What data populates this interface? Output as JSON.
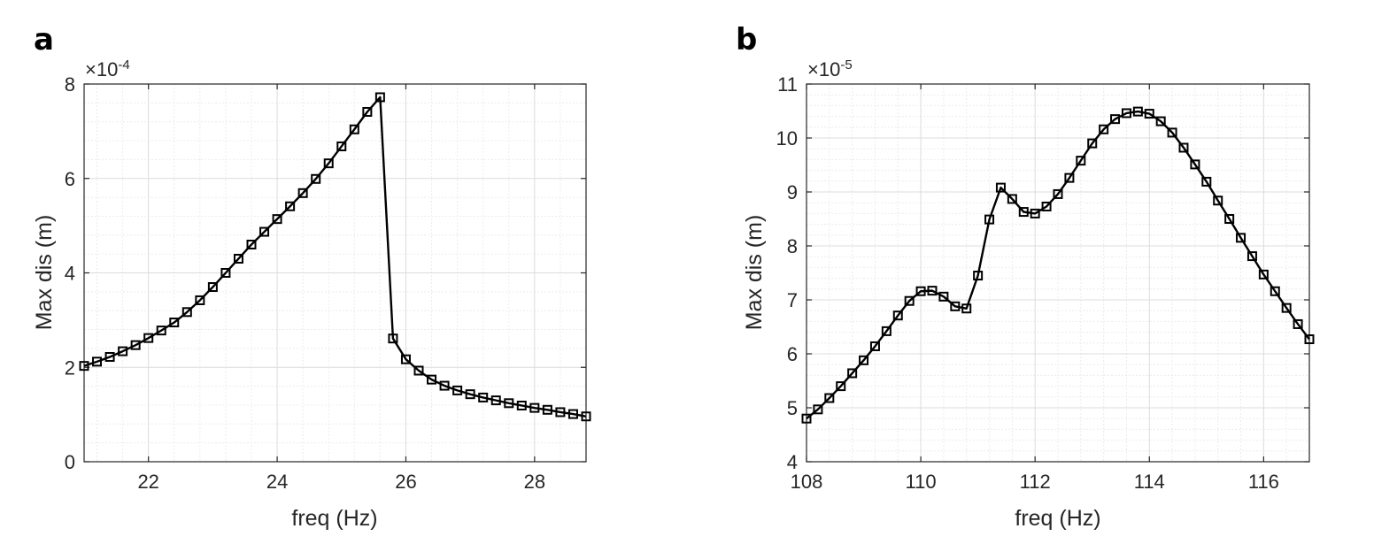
{
  "colors": {
    "line": "#000000",
    "grid_major": "#dcdcdc",
    "grid_minor": "#ececec",
    "axis": "#262626"
  },
  "chart_data": [
    {
      "type": "line",
      "panel_label": "a",
      "title": "",
      "xlabel": "freq (Hz)",
      "ylabel": "Max dis (m)",
      "xlim": [
        21,
        28.8
      ],
      "ylim": [
        0,
        8
      ],
      "xticks": [
        22,
        24,
        26,
        28
      ],
      "yticks": [
        0,
        2,
        4,
        6,
        8
      ],
      "x_minor_step": 0.4,
      "y_minor_step": 0.4,
      "exponent_label": "×10",
      "exponent_power": "-4",
      "marker": "square",
      "grid": true,
      "series": [
        {
          "name": "Max dis",
          "x": [
            21.0,
            21.2,
            21.4,
            21.6,
            21.8,
            22.0,
            22.2,
            22.4,
            22.6,
            22.8,
            23.0,
            23.2,
            23.4,
            23.6,
            23.8,
            24.0,
            24.2,
            24.4,
            24.6,
            24.8,
            25.0,
            25.2,
            25.4,
            25.6,
            25.8,
            26.0,
            26.2,
            26.4,
            26.6,
            26.8,
            27.0,
            27.2,
            27.4,
            27.6,
            27.8,
            28.0,
            28.2,
            28.4,
            28.6,
            28.8
          ],
          "y": [
            2.03,
            2.12,
            2.22,
            2.34,
            2.47,
            2.62,
            2.78,
            2.95,
            3.17,
            3.42,
            3.7,
            4.0,
            4.3,
            4.6,
            4.87,
            5.14,
            5.41,
            5.69,
            5.99,
            6.32,
            6.68,
            7.04,
            7.41,
            7.72,
            2.61,
            2.17,
            1.93,
            1.74,
            1.61,
            1.51,
            1.43,
            1.36,
            1.3,
            1.24,
            1.19,
            1.14,
            1.1,
            1.05,
            1.01,
            0.96
          ]
        }
      ]
    },
    {
      "type": "line",
      "panel_label": "b",
      "title": "",
      "xlabel": "freq (Hz)",
      "ylabel": "Max dis (m)",
      "xlim": [
        108,
        116.8
      ],
      "ylim": [
        4,
        11
      ],
      "xticks": [
        108,
        110,
        112,
        114,
        116
      ],
      "yticks": [
        4,
        5,
        6,
        7,
        8,
        9,
        10,
        11
      ],
      "x_minor_step": 0.4,
      "y_minor_step": 0.2,
      "exponent_label": "×10",
      "exponent_power": "-5",
      "marker": "square",
      "grid": true,
      "series": [
        {
          "name": "Max dis",
          "x": [
            108.0,
            108.2,
            108.4,
            108.6,
            108.8,
            109.0,
            109.2,
            109.4,
            109.6,
            109.8,
            110.0,
            110.2,
            110.4,
            110.6,
            110.8,
            111.0,
            111.2,
            111.4,
            111.6,
            111.8,
            112.0,
            112.2,
            112.4,
            112.6,
            112.8,
            113.0,
            113.2,
            113.4,
            113.6,
            113.8,
            114.0,
            114.2,
            114.4,
            114.6,
            114.8,
            115.0,
            115.2,
            115.4,
            115.6,
            115.8,
            116.0,
            116.2,
            116.4,
            116.6,
            116.8
          ],
          "y": [
            4.8,
            4.97,
            5.18,
            5.4,
            5.64,
            5.88,
            6.14,
            6.42,
            6.71,
            6.98,
            7.16,
            7.17,
            7.06,
            6.88,
            6.84,
            7.45,
            8.49,
            9.08,
            8.87,
            8.63,
            8.6,
            8.73,
            8.96,
            9.26,
            9.58,
            9.9,
            10.16,
            10.35,
            10.46,
            10.49,
            10.45,
            10.31,
            10.1,
            9.82,
            9.51,
            9.19,
            8.84,
            8.5,
            8.15,
            7.81,
            7.47,
            7.16,
            6.85,
            6.55,
            6.27
          ]
        }
      ]
    }
  ]
}
